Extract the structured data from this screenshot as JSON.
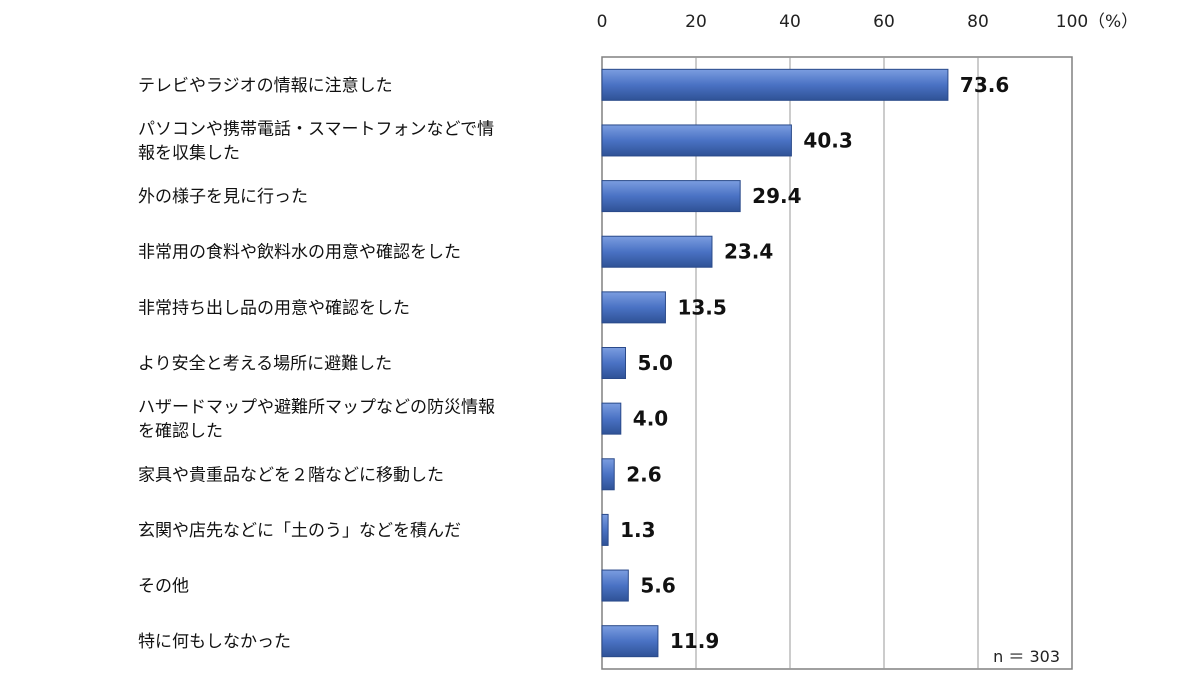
{
  "chart_data": {
    "type": "bar",
    "orientation": "horizontal",
    "categories": [
      [
        "テレビやラジオの情報に注意した"
      ],
      [
        "パソコンや携帯電話・スマートフォンなどで情",
        "報を収集した"
      ],
      [
        "外の様子を見に行った"
      ],
      [
        "非常用の食料や飲料水の用意や確認をした"
      ],
      [
        "非常持ち出し品の用意や確認をした"
      ],
      [
        "より安全と考える場所に避難した"
      ],
      [
        "ハザードマップや避難所マップなどの防災情報",
        "を確認した"
      ],
      [
        "家具や貴重品などを２階などに移動した"
      ],
      [
        "玄関や店先などに「土のう」などを積んだ"
      ],
      [
        "その他"
      ],
      [
        "特に何もしなかった"
      ]
    ],
    "values": [
      73.6,
      40.3,
      29.4,
      23.4,
      13.5,
      5.0,
      4.0,
      2.6,
      1.3,
      5.6,
      11.9
    ],
    "value_labels": [
      "73.6",
      "40.3",
      "29.4",
      "23.4",
      "13.5",
      "5.0",
      "4.0",
      "2.6",
      "1.3",
      "5.6",
      "11.9"
    ],
    "xlim": [
      0,
      100
    ],
    "x_ticks": [
      "0",
      "20",
      "40",
      "60",
      "80",
      "100"
    ],
    "x_unit": "（%）",
    "axis_position": "top",
    "grid": true,
    "note": "n ＝ 303",
    "bar_color": "#4a72c4"
  }
}
